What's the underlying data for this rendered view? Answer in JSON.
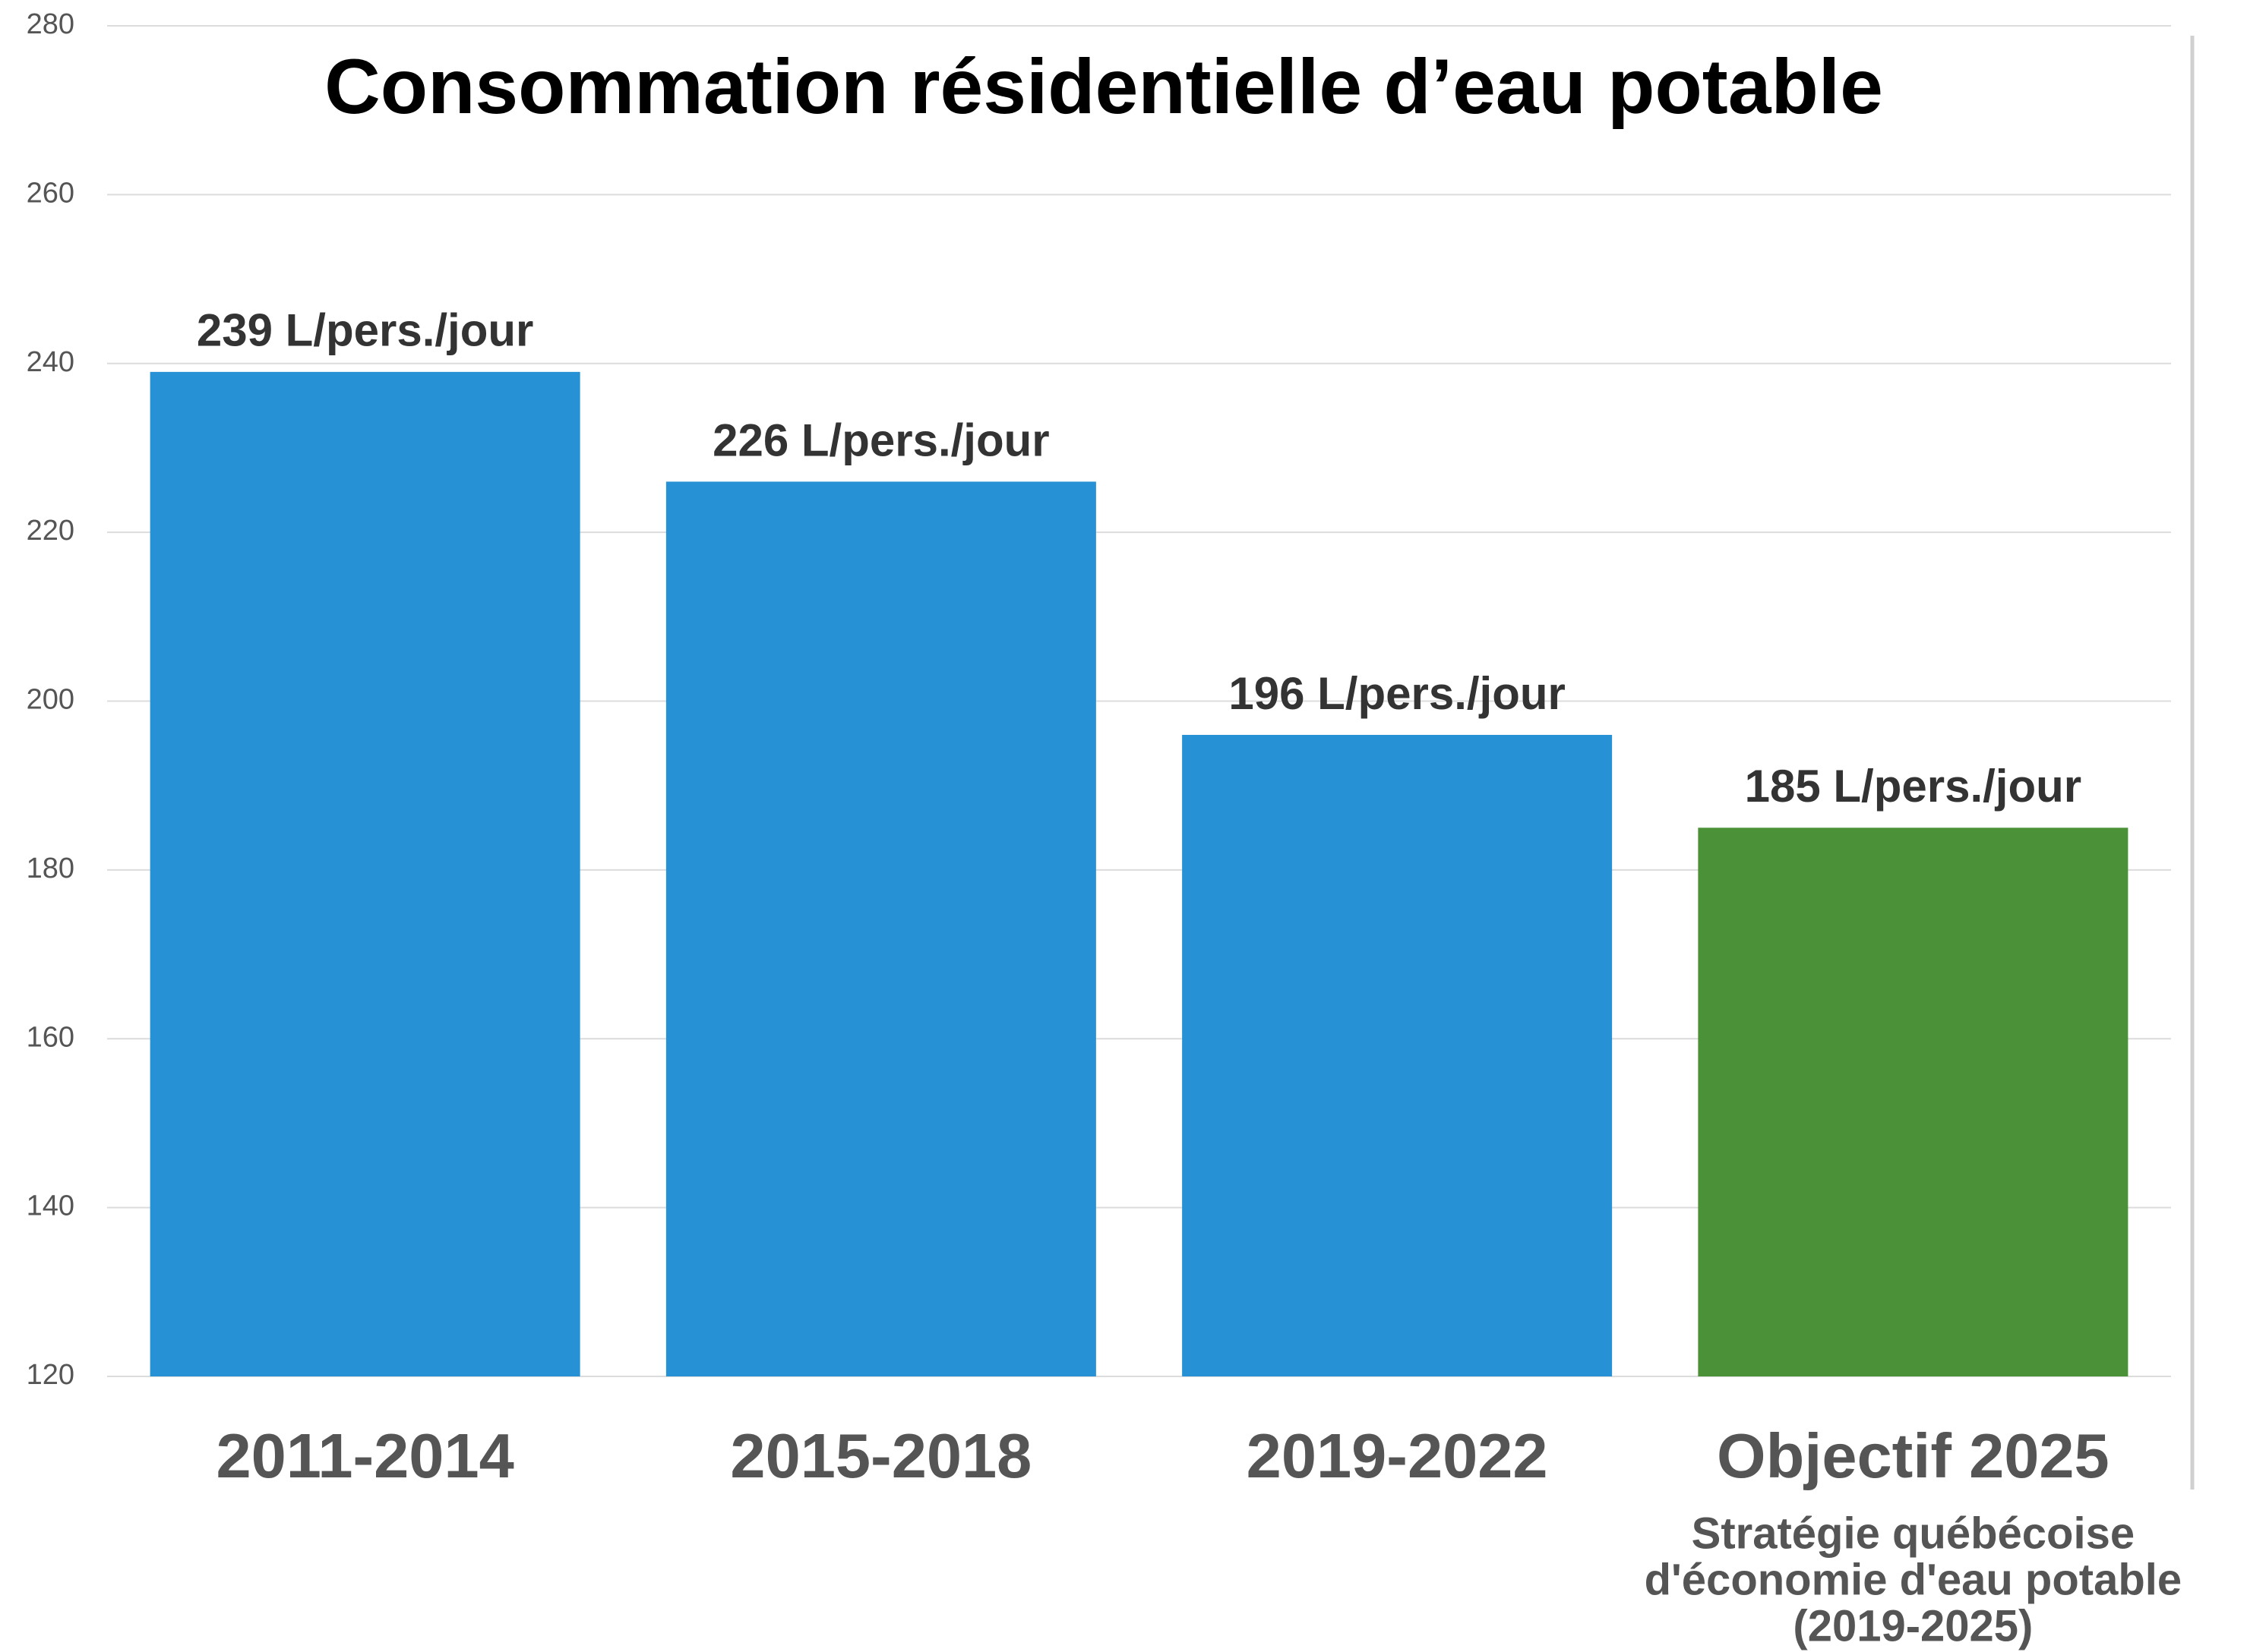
{
  "chart_data": {
    "type": "bar",
    "title": "Consommation résidentielle d’eau potable",
    "categories": [
      "2011-2014",
      "2015-2018",
      "2019-2022",
      "Objectif 2025"
    ],
    "values": [
      239,
      226,
      196,
      185
    ],
    "value_labels": [
      "239 L/pers./jour",
      "226 L/pers./jour",
      "196 L/pers./jour",
      "185 L/pers./jour"
    ],
    "colors": [
      "#2691d4",
      "#2691d4",
      "#2691d4",
      "#4a9137"
    ],
    "annotation": [
      "Stratégie québécoise",
      "d'économie d'eau potable",
      "(2019-2025)"
    ],
    "ylim": [
      120,
      280
    ],
    "yticks": [
      120,
      140,
      160,
      180,
      200,
      220,
      240,
      260,
      280
    ],
    "grid": true
  }
}
